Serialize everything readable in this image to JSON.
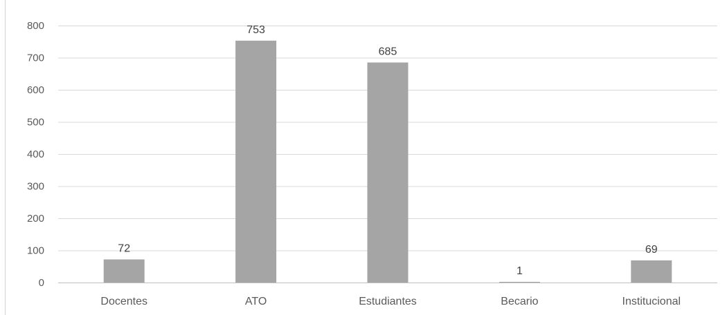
{
  "chart_data": {
    "type": "bar",
    "categories": [
      "Docentes",
      "ATO",
      "Estudiantes",
      "Becario",
      "Institucional"
    ],
    "values": [
      72,
      753,
      685,
      1,
      69
    ],
    "data_labels": [
      "72",
      "753",
      "685",
      "1",
      "69"
    ],
    "title": "",
    "xlabel": "",
    "ylabel": "",
    "ylim": [
      0,
      800
    ],
    "yticks": [
      0,
      100,
      200,
      300,
      400,
      500,
      600,
      700,
      800
    ],
    "grid": true,
    "legend": "none",
    "bar_color": "#a5a5a5",
    "grid_color": "#d9d9d9"
  }
}
